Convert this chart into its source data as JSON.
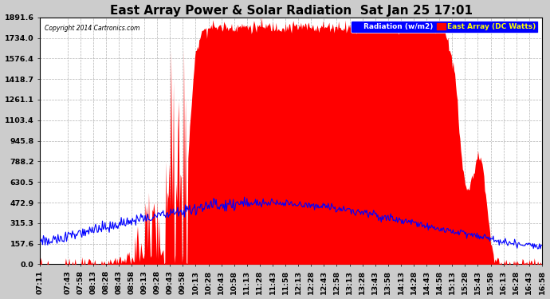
{
  "title": "East Array Power & Solar Radiation  Sat Jan 25 17:01",
  "copyright": "Copyright 2014 Cartronics.com",
  "legend_labels": [
    "Radiation (w/m2)",
    "East Array (DC Watts)"
  ],
  "legend_colors": [
    "blue",
    "red"
  ],
  "ymin": 0.0,
  "ymax": 1891.6,
  "yticks": [
    0.0,
    157.6,
    315.3,
    472.9,
    630.5,
    788.2,
    945.8,
    1103.4,
    1261.1,
    1418.7,
    1576.4,
    1734.0,
    1891.6
  ],
  "background_color": "#cccccc",
  "plot_background": "#ffffff",
  "grid_color": "#aaaaaa",
  "title_fontsize": 11,
  "axis_fontsize": 6.8,
  "tick_labels": [
    "07:11",
    "07:43",
    "07:58",
    "08:13",
    "08:28",
    "08:43",
    "08:58",
    "09:13",
    "09:28",
    "09:43",
    "09:58",
    "10:13",
    "10:28",
    "10:43",
    "10:58",
    "11:13",
    "11:28",
    "11:43",
    "11:58",
    "12:13",
    "12:28",
    "12:43",
    "12:58",
    "13:13",
    "13:28",
    "13:43",
    "13:58",
    "14:13",
    "14:28",
    "14:43",
    "14:58",
    "15:13",
    "15:28",
    "15:43",
    "15:58",
    "16:13",
    "16:28",
    "16:43",
    "16:58"
  ]
}
